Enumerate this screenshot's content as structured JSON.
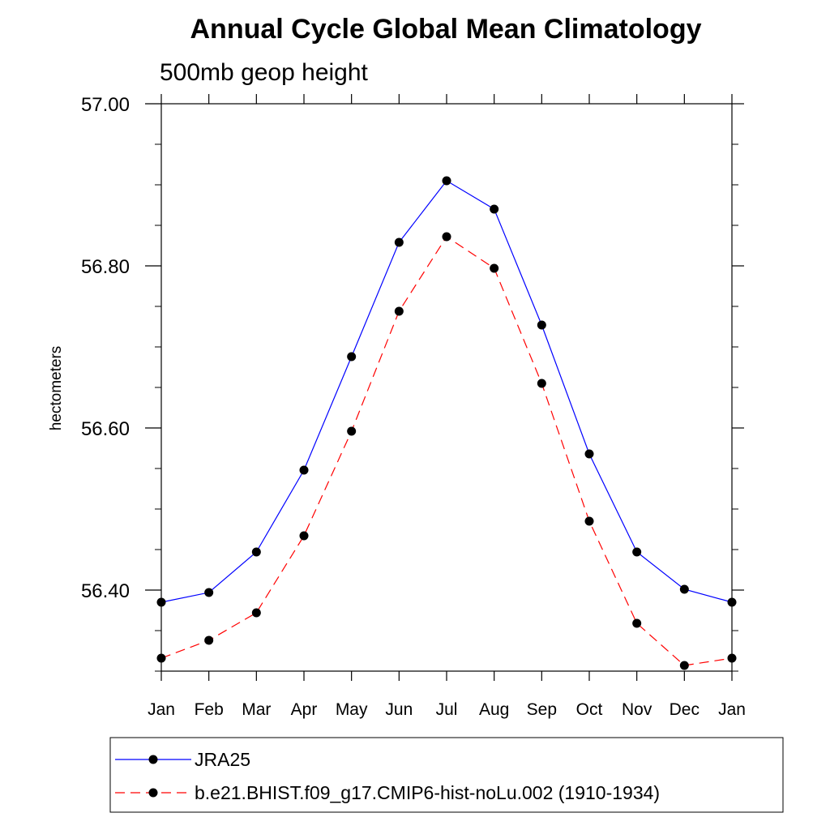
{
  "chart_data": {
    "type": "line",
    "title": "Annual Cycle Global Mean Climatology",
    "subtitle": "500mb geop height",
    "ylabel": "hectometers",
    "xlabel": "",
    "categories": [
      "Jan",
      "Feb",
      "Mar",
      "Apr",
      "May",
      "Jun",
      "Jul",
      "Aug",
      "Sep",
      "Oct",
      "Nov",
      "Dec",
      "Jan"
    ],
    "ylim": [
      56.3,
      57.0
    ],
    "yticks": [
      56.4,
      56.6,
      56.8,
      57.0
    ],
    "ytick_labels": [
      "56.40",
      "56.60",
      "56.80",
      "57.00"
    ],
    "grid": false,
    "legend_position": "bottom",
    "series": [
      {
        "name": "JRA25",
        "color": "#0000ff",
        "line_style": "solid",
        "marker": "filled-circle",
        "values": [
          56.385,
          56.397,
          56.447,
          56.548,
          56.688,
          56.829,
          56.905,
          56.87,
          56.727,
          56.568,
          56.447,
          56.401,
          56.385
        ]
      },
      {
        "name": "b.e21.BHIST.f09_g17.CMIP6-hist-noLu.002 (1910-1934)",
        "color": "#ff0000",
        "line_style": "dashed",
        "marker": "filled-circle",
        "values": [
          56.316,
          56.338,
          56.372,
          56.467,
          56.596,
          56.744,
          56.836,
          56.797,
          56.655,
          56.485,
          56.359,
          56.307,
          56.316
        ]
      }
    ]
  }
}
